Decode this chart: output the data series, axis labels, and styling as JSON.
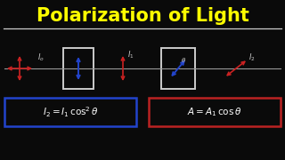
{
  "bg_color": "#0a0a0a",
  "title": "Polarization of Light",
  "title_color": "#ffff00",
  "title_fontsize": 15,
  "separator_color": "#cccccc",
  "formula1": "$\\mathcal{I}_2 = \\mathcal{I}_1\\,\\mathrm{cos}^2\\theta$",
  "formula2": "$A = A_1\\,\\mathrm{cos}\\,\\theta$",
  "formula_color": "#ffffff",
  "formula1_box_color": "#2244cc",
  "formula2_box_color": "#bb2222",
  "arrow_color_red": "#cc2222",
  "arrow_color_blue": "#2244cc",
  "box_color": "#cccccc",
  "label_color": "#cccccc",
  "beam_color": "#999999"
}
